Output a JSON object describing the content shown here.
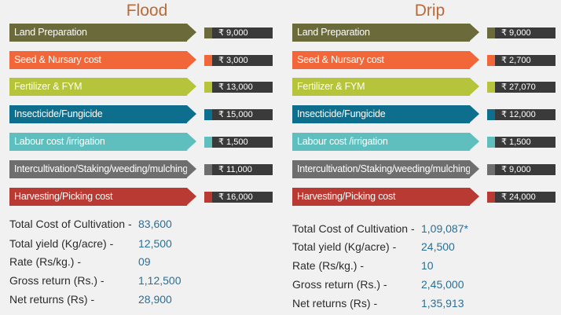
{
  "colors": {
    "title": "#b96a36",
    "land": "#6b6a3a",
    "seed": "#f2673a",
    "fert": "#b5c43a",
    "insect": "#0d6e8e",
    "labour": "#5ebfbe",
    "inter": "#6e6e6e",
    "harvest": "#b83a32",
    "value_box": "#3a3a3a",
    "summary_value": "#2a6f97"
  },
  "flood": {
    "title": "Flood",
    "rows": [
      {
        "label": "Land Preparation",
        "value": "₹ 9,000",
        "color": "#6b6a3a"
      },
      {
        "label": "Seed & Nursary cost",
        "value": "₹ 3,000",
        "color": "#f2673a"
      },
      {
        "label": "Fertilizer & FYM",
        "value": "₹ 13,000",
        "color": "#b5c43a"
      },
      {
        "label": "Insecticide/Fungicide",
        "value": "₹ 15,000",
        "color": "#0d6e8e"
      },
      {
        "label": "Labour cost /irrigation",
        "value": "₹ 1,500",
        "color": "#5ebfbe"
      },
      {
        "label": "Intercultivation/Staking/weeding/mulching",
        "value": "₹ 11,000",
        "color": "#6e6e6e"
      },
      {
        "label": "Harvesting/Picking cost",
        "value": "₹ 16,000",
        "color": "#b83a32"
      }
    ],
    "summary": [
      {
        "key": "Total Cost of Cultivation -",
        "value": "83,600"
      },
      {
        "key": "Total yield (Kg/acre) -",
        "value": "12,500"
      },
      {
        "key": "Rate (Rs/kg.) -",
        "value": "09"
      },
      {
        "key": "Gross return (Rs.) -",
        "value": "1,12,500"
      },
      {
        "key": "Net returns (Rs) -",
        "value": "28,900"
      }
    ]
  },
  "drip": {
    "title": "Drip",
    "rows": [
      {
        "label": "Land Preparation",
        "value": "₹ 9,000",
        "color": "#6b6a3a"
      },
      {
        "label": "Seed & Nursary cost",
        "value": "₹ 2,700",
        "color": "#f2673a"
      },
      {
        "label": "Fertilizer & FYM",
        "value": "₹ 27,070",
        "color": "#b5c43a"
      },
      {
        "label": "Insecticide/Fungicide",
        "value": "₹ 12,000",
        "color": "#0d6e8e"
      },
      {
        "label": "Labour cost /irrigation",
        "value": "₹ 1,500",
        "color": "#5ebfbe"
      },
      {
        "label": "Intercultivation/Staking/weeding/mulching",
        "value": "₹ 9,000",
        "color": "#6e6e6e"
      },
      {
        "label": "Harvesting/Picking cost",
        "value": "₹ 24,000",
        "color": "#b83a32"
      }
    ],
    "summary": [
      {
        "key": "Total Cost of Cultivation -",
        "value": "1,09,087*"
      },
      {
        "key": "Total yield (Kg/acre) -",
        "value": "24,500"
      },
      {
        "key": "Rate (Rs/kg.) -",
        "value": "10"
      },
      {
        "key": "Gross return (Rs.) -",
        "value": "2,45,000"
      },
      {
        "key": "Net returns (Rs) -",
        "value": "1,35,913"
      }
    ]
  }
}
